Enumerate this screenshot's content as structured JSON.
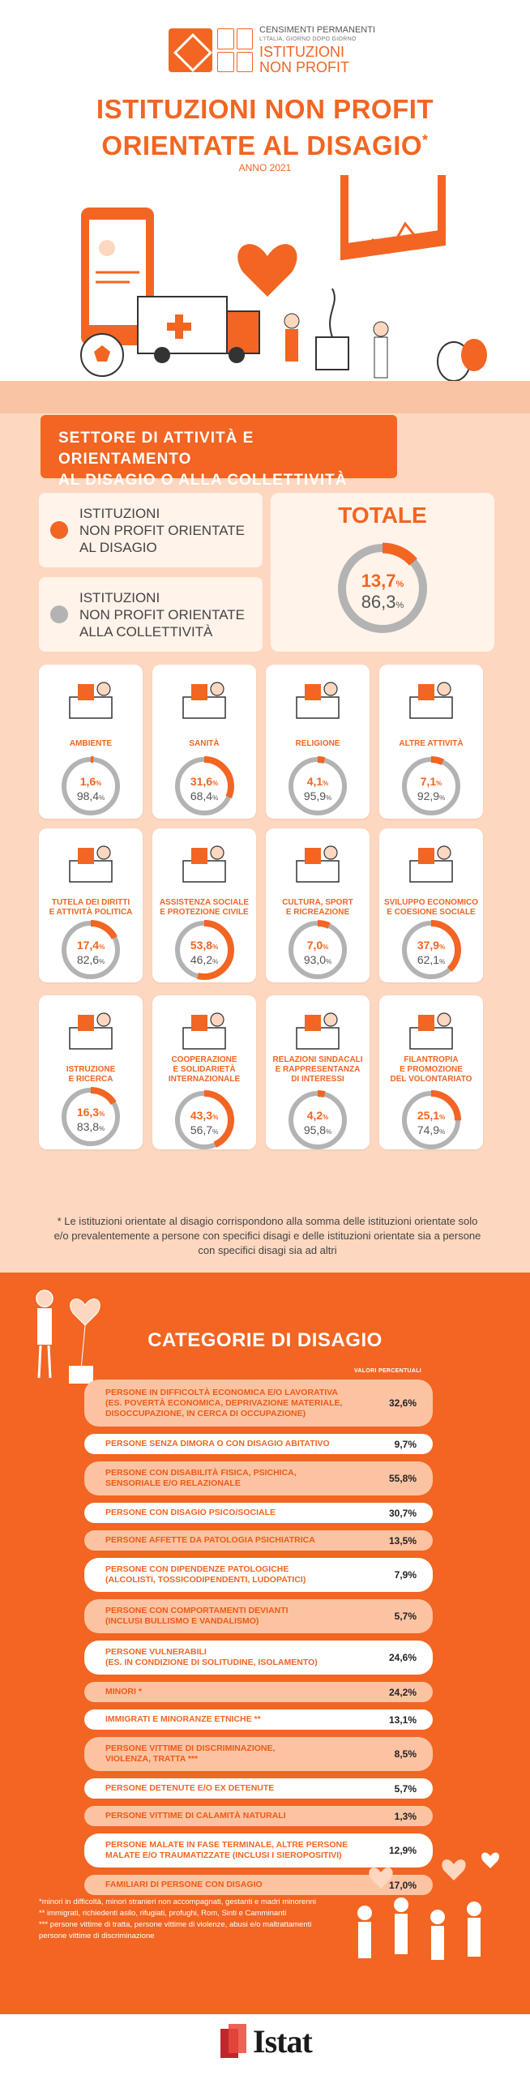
{
  "header": {
    "logo": {
      "line1": "CENSIMENTI PERMANENTI",
      "line2": "L'ITALIA, GIORNO DOPO GIORNO",
      "line3": "ISTITUZIONI",
      "line4": "NON PROFIT"
    },
    "title_line1": "ISTITUZIONI NON PROFIT",
    "title_line2": "ORIENTATE AL DISAGIO",
    "title_mark": "*",
    "year": "ANNO 2021"
  },
  "colors": {
    "accent": "#f26522",
    "peach": "#fdd7bf",
    "grey_ring": "#b3b3b3"
  },
  "section1": {
    "banner_line1": "SETTORE DI ATTIVITÀ E ORIENTAMENTO",
    "banner_line2": "AL DISAGIO O ALLA COLLETTIVITÀ",
    "legend": [
      {
        "line1": "ISTITUZIONI",
        "line2": "NON PROFIT ORIENTATE",
        "line3": "AL DISAGIO",
        "color": "#f26522"
      },
      {
        "line1": "ISTITUZIONI",
        "line2": "NON PROFIT ORIENTATE",
        "line3": "ALLA COLLETTIVITÀ",
        "color": "#b3b3b3"
      }
    ],
    "total": {
      "title": "TOTALE",
      "disagio": 13.7,
      "collettivita": 86.3,
      "disagio_txt": "13,7",
      "collettivita_txt": "86,3"
    },
    "sectors": [
      {
        "label1": "AMBIENTE",
        "label2": "",
        "label3": "",
        "icon": "tree-icon",
        "disagio": 1.6,
        "disagio_txt": "1,6",
        "collettivita_txt": "98,4"
      },
      {
        "label1": "SANITÀ",
        "label2": "",
        "label3": "",
        "icon": "ambulance-icon",
        "disagio": 31.6,
        "disagio_txt": "31,6",
        "collettivita_txt": "68,4"
      },
      {
        "label1": "RELIGIONE",
        "label2": "",
        "label3": "",
        "icon": "church-icon",
        "disagio": 4.1,
        "disagio_txt": "4,1",
        "collettivita_txt": "95,9"
      },
      {
        "label1": "ALTRE ATTIVITÀ",
        "label2": "",
        "label3": "",
        "icon": "plants-icon",
        "disagio": 7.1,
        "disagio_txt": "7,1",
        "collettivita_txt": "92,9"
      },
      {
        "label1": "TUTELA DEI DIRITTI",
        "label2": "E ATTIVITÀ POLITICA",
        "label3": "",
        "icon": "megaphone-person-icon",
        "disagio": 17.4,
        "disagio_txt": "17,4",
        "collettivita_txt": "82,6"
      },
      {
        "label1": "ASSISTENZA SOCIALE",
        "label2": "E PROTEZIONE CIVILE",
        "label3": "",
        "icon": "wheelchair-icon",
        "disagio": 53.8,
        "disagio_txt": "53,8",
        "collettivita_txt": "46,2"
      },
      {
        "label1": "CULTURA, SPORT",
        "label2": "E RICREAZIONE",
        "label3": "",
        "icon": "theatre-masks-icon",
        "disagio": 7.0,
        "disagio_txt": "7,0",
        "collettivita_txt": "93,0"
      },
      {
        "label1": "SVILUPPO ECONOMICO",
        "label2": "E COESIONE SOCIALE",
        "label3": "",
        "icon": "growth-chart-icon",
        "disagio": 37.9,
        "disagio_txt": "37,9",
        "collettivita_txt": "62,1"
      },
      {
        "label1": "ISTRUZIONE",
        "label2": "E RICERCA",
        "label3": "",
        "icon": "books-icon",
        "disagio": 16.3,
        "disagio_txt": "16,3",
        "collettivita_txt": "83,8"
      },
      {
        "label1": "COOPERAZIONE",
        "label2": "E SOLIDARIETÀ",
        "label3": "INTERNAZIONALE",
        "icon": "flag-people-icon",
        "disagio": 43.3,
        "disagio_txt": "43,3",
        "collettivita_txt": "56,7"
      },
      {
        "label1": "RELAZIONI SINDACALI",
        "label2": "E RAPPRESENTANZA",
        "label3": "DI INTERESSI",
        "icon": "crowd-icon",
        "disagio": 4.2,
        "disagio_txt": "4,2",
        "collettivita_txt": "95,8"
      },
      {
        "label1": "FILANTROPIA",
        "label2": "E PROMOZIONE",
        "label3": "DEL VOLONTARIATO",
        "icon": "megaphone-icon",
        "disagio": 25.1,
        "disagio_txt": "25,1",
        "collettivita_txt": "74,9"
      }
    ],
    "percent_sign": "%",
    "footnote": "* Le istituzioni orientate al disagio corrispondono alla somma delle istituzioni orientate solo e/o prevalentemente a persone con specifici disagi e delle istituzioni orientate sia a persone con specifici disagi sia ad altri"
  },
  "section2": {
    "title": "CATEGORIE DI DISAGIO",
    "values_label": "VALORI PERCENTUALI",
    "categories": [
      {
        "line1": "PERSONE IN DIFFICOLTÀ ECONOMICA E/O LAVORATIVA",
        "line2": "(ES. POVERTÀ ECONOMICA, DEPRIVAZIONE MATERIALE,",
        "line3": "DISOCCUPAZIONE, IN CERCA DI OCCUPAZIONE)",
        "value": "32,6%",
        "style": "peach"
      },
      {
        "line1": "PERSONE SENZA DIMORA O CON DISAGIO ABITATIVO",
        "line2": "",
        "line3": "",
        "value": "9,7%",
        "style": "white"
      },
      {
        "line1": "PERSONE CON DISABILITÀ FISICA, PSICHICA,",
        "line2": "SENSORIALE E/O RELAZIONALE",
        "line3": "",
        "value": "55,8%",
        "style": "peach"
      },
      {
        "line1": "PERSONE CON DISAGIO PSICO/SOCIALE",
        "line2": "",
        "line3": "",
        "value": "30,7%",
        "style": "white"
      },
      {
        "line1": "PERSONE AFFETTE DA PATOLOGIA PSICHIATRICA",
        "line2": "",
        "line3": "",
        "value": "13,5%",
        "style": "peach"
      },
      {
        "line1": "PERSONE CON DIPENDENZE PATOLOGICHE",
        "line2": "(ALCOLISTI, TOSSICODIPENDENTI, LUDOPATICI)",
        "line3": "",
        "value": "7,9%",
        "style": "white"
      },
      {
        "line1": "PERSONE CON COMPORTAMENTI DEVIANTI",
        "line2": "(INCLUSI BULLISMO E VANDALISMO)",
        "line3": "",
        "value": "5,7%",
        "style": "peach"
      },
      {
        "line1": "PERSONE VULNERABILI",
        "line2": "(ES. IN CONDIZIONE DI SOLITUDINE, ISOLAMENTO)",
        "line3": "",
        "value": "24,6%",
        "style": "white"
      },
      {
        "line1": "MINORI *",
        "line2": "",
        "line3": "",
        "value": "24,2%",
        "style": "peach"
      },
      {
        "line1": "IMMIGRATI E MINORANZE ETNICHE **",
        "line2": "",
        "line3": "",
        "value": "13,1%",
        "style": "white"
      },
      {
        "line1": "PERSONE VITTIME DI DISCRIMINAZIONE,",
        "line2": "VIOLENZA, TRATTA ***",
        "line3": "",
        "value": "8,5%",
        "style": "peach"
      },
      {
        "line1": "PERSONE DETENUTE E/O EX DETENUTE",
        "line2": "",
        "line3": "",
        "value": "5,7%",
        "style": "white"
      },
      {
        "line1": "PERSONE VITTIME DI CALAMITÀ NATURALI",
        "line2": "",
        "line3": "",
        "value": "1,3%",
        "style": "peach"
      },
      {
        "line1": "PERSONE MALATE IN FASE TERMINALE, ALTRE PERSONE",
        "line2": "MALATE E/O TRAUMATIZZATE (INCLUSI I SIEROPOSITIVI)",
        "line3": "",
        "value": "12,9%",
        "style": "white"
      },
      {
        "line1": "FAMILIARI DI PERSONE CON DISAGIO",
        "line2": "",
        "line3": "",
        "value": "17,0%",
        "style": "peach"
      }
    ],
    "footnotes": [
      "*minori in difficoltà, minori stranieri non accompagnati, gestanti e madri minorenni",
      "** immigrati, richiedenti asilo, rifugiati, profughi, Rom, Sinti e Camminanti",
      "*** persone vittime di tratta, persone vittime di violenze, abusi e/o maltrattamenti\npersone vittime di discriminazione"
    ]
  },
  "footer": {
    "brand": "Istat"
  }
}
